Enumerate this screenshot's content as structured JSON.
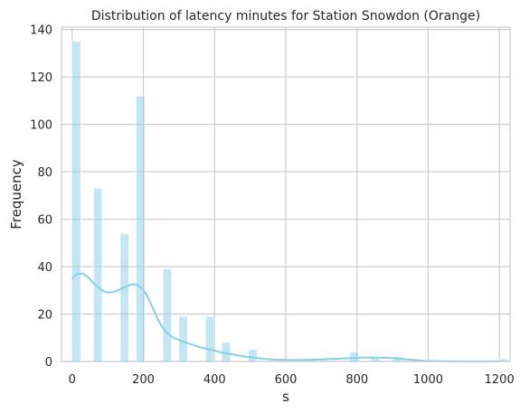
{
  "chart_data": {
    "type": "bar",
    "title": "Distribution of latency minutes for Station Snowdon (Orange)",
    "xlabel": "s",
    "ylabel": "Frequency",
    "xlim": [
      -30,
      1230
    ],
    "ylim": [
      0,
      141
    ],
    "xticks": [
      0,
      200,
      400,
      600,
      800,
      1000,
      1200
    ],
    "yticks": [
      0,
      20,
      40,
      60,
      80,
      100,
      120,
      140
    ],
    "grid": true,
    "bar_color": "#87ceeb",
    "bar_opacity": 0.5,
    "kde_color": "#87ceeb",
    "bin_width": 24,
    "bins": [
      {
        "x": 0,
        "count": 135
      },
      {
        "x": 60,
        "count": 73
      },
      {
        "x": 135,
        "count": 54
      },
      {
        "x": 180,
        "count": 112
      },
      {
        "x": 255,
        "count": 39
      },
      {
        "x": 300,
        "count": 19
      },
      {
        "x": 375,
        "count": 19
      },
      {
        "x": 420,
        "count": 8
      },
      {
        "x": 495,
        "count": 5
      },
      {
        "x": 660,
        "count": 1
      },
      {
        "x": 780,
        "count": 4
      },
      {
        "x": 840,
        "count": 2
      },
      {
        "x": 900,
        "count": 2
      },
      {
        "x": 1200,
        "count": 1
      }
    ],
    "kde": {
      "x": [
        0,
        15,
        30,
        45,
        60,
        75,
        90,
        105,
        120,
        135,
        150,
        165,
        180,
        195,
        210,
        225,
        240,
        255,
        270,
        285,
        300,
        330,
        360,
        390,
        420,
        450,
        480,
        510,
        540,
        570,
        600,
        630,
        660,
        690,
        720,
        750,
        780,
        810,
        840,
        870,
        900,
        930,
        960,
        990,
        1020,
        1050,
        1080,
        1110,
        1140,
        1170,
        1200
      ],
      "y": [
        35,
        37,
        37,
        35.5,
        33,
        31,
        29.5,
        29,
        29.5,
        30.5,
        31.5,
        32.5,
        32.5,
        31,
        28,
        23,
        18,
        14,
        11.5,
        10,
        9,
        7.5,
        6,
        5,
        3.8,
        3.0,
        2.2,
        1.6,
        1.1,
        0.8,
        0.6,
        0.6,
        0.7,
        0.8,
        1.0,
        1.2,
        1.4,
        1.6,
        1.7,
        1.6,
        1.4,
        1.0,
        0.6,
        0.3,
        0.15,
        0.08,
        0.05,
        0.05,
        0.05,
        0.05,
        0.05
      ]
    }
  }
}
